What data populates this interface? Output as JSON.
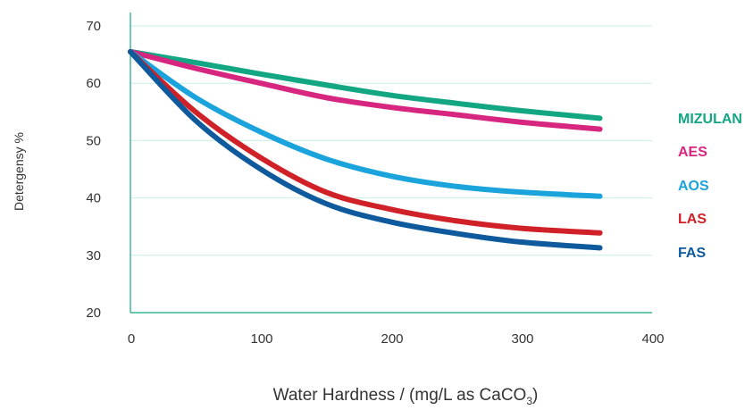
{
  "chart_data": {
    "type": "line",
    "xlabel_main": "Water Hardness / (mg/L as CaCO",
    "xlabel_sub": "3",
    "xlabel_close": ")",
    "ylabel": "Detergensy %",
    "xlim": [
      0,
      400
    ],
    "ylim": [
      20,
      70
    ],
    "x_ticks": [
      "0",
      "100",
      "200",
      "300",
      "400"
    ],
    "y_ticks": [
      "20",
      "30",
      "40",
      "50",
      "60",
      "70"
    ],
    "grid": "horizontal",
    "legend_position": "right",
    "series": [
      {
        "name": "MIZULAN",
        "color": "#12a683",
        "x": [
          0,
          50,
          100,
          150,
          200,
          250,
          300,
          360
        ],
        "y": [
          65.5,
          63.6,
          61.6,
          59.7,
          57.9,
          56.5,
          55.2,
          53.9
        ]
      },
      {
        "name": "AES",
        "color": "#d7267f",
        "x": [
          0,
          50,
          100,
          150,
          200,
          250,
          300,
          360
        ],
        "y": [
          65.5,
          62.6,
          60.0,
          57.5,
          55.8,
          54.5,
          53.2,
          52.0
        ]
      },
      {
        "name": "AOS",
        "color": "#1ba3dc",
        "x": [
          0,
          50,
          100,
          150,
          200,
          250,
          300,
          360
        ],
        "y": [
          65.5,
          57.5,
          51.5,
          46.8,
          43.8,
          42.0,
          41.0,
          40.3
        ]
      },
      {
        "name": "LAS",
        "color": "#cf2127",
        "x": [
          0,
          50,
          100,
          150,
          200,
          250,
          300,
          360
        ],
        "y": [
          65.5,
          55.0,
          47.0,
          41.0,
          38.0,
          36.0,
          34.7,
          33.9
        ]
      },
      {
        "name": "FAS",
        "color": "#0f5a9c",
        "x": [
          0,
          50,
          100,
          150,
          200,
          250,
          300,
          360
        ],
        "y": [
          65.5,
          53.5,
          45.0,
          39.0,
          35.8,
          33.8,
          32.3,
          31.3
        ]
      }
    ]
  }
}
